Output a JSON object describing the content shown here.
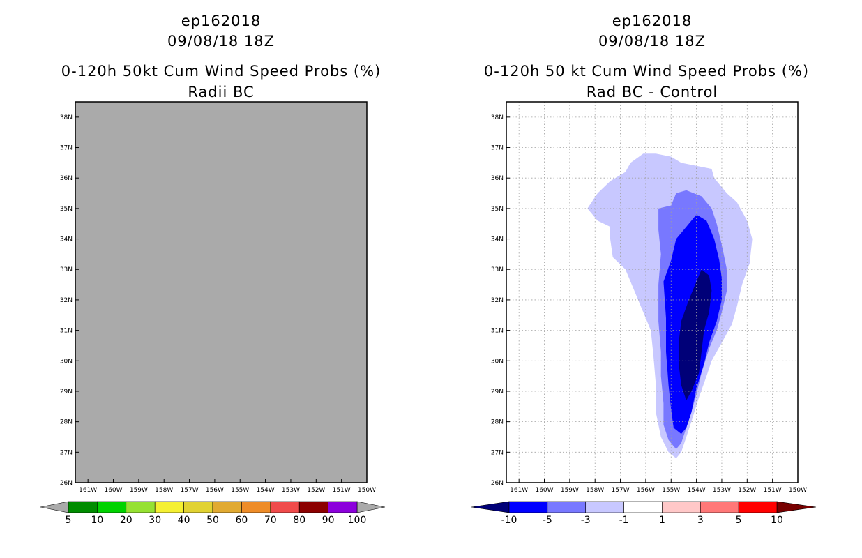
{
  "chart_data": [
    {
      "type": "heatmap",
      "title_lines": [
        "ep162018",
        "09/08/18 18Z",
        "0-120h 50kt Cum Wind Speed Probs (%)",
        "Radii BC"
      ],
      "x_ticks": [
        "161W",
        "160W",
        "159W",
        "158W",
        "157W",
        "156W",
        "155W",
        "154W",
        "153W",
        "152W",
        "151W",
        "150W"
      ],
      "y_ticks": [
        "26N",
        "27N",
        "28N",
        "29N",
        "30N",
        "31N",
        "32N",
        "33N",
        "34N",
        "35N",
        "36N",
        "37N",
        "38N"
      ],
      "xlim": [
        -161.5,
        -150.0
      ],
      "ylim": [
        26.0,
        38.5
      ],
      "field": "no probabilities above 5% (missing/undefined)",
      "background_color": "#aaaaaa",
      "colorbar": {
        "labels": [
          "5",
          "10",
          "20",
          "30",
          "40",
          "50",
          "60",
          "70",
          "80",
          "90",
          "100"
        ],
        "colors": [
          "#008c00",
          "#00d200",
          "#96e132",
          "#f5f032",
          "#e1d232",
          "#e1aa32",
          "#ee8c28",
          "#f04b4b",
          "#8c0000",
          "#8c00dc"
        ]
      }
    },
    {
      "type": "heatmap",
      "title_lines": [
        "ep162018",
        "09/08/18 18Z",
        "0-120h 50 kt Cum Wind Speed Probs (%)",
        "Rad BC - Control"
      ],
      "x_ticks": [
        "161W",
        "160W",
        "159W",
        "158W",
        "157W",
        "156W",
        "155W",
        "154W",
        "153W",
        "152W",
        "151W",
        "150W"
      ],
      "y_ticks": [
        "26N",
        "27N",
        "28N",
        "29N",
        "30N",
        "31N",
        "32N",
        "33N",
        "34N",
        "35N",
        "36N",
        "37N",
        "38N"
      ],
      "xlim": [
        -161.5,
        -150.0
      ],
      "ylim": [
        26.0,
        38.5
      ],
      "contours": [
        {
          "level": "-3 to -1",
          "color": "#c8c8ff",
          "points": [
            [
              -158.3,
              35.0
            ],
            [
              -157.9,
              35.5
            ],
            [
              -157.4,
              35.9
            ],
            [
              -156.8,
              36.2
            ],
            [
              -156.6,
              36.5
            ],
            [
              -156.1,
              36.8
            ],
            [
              -155.6,
              36.8
            ],
            [
              -155.0,
              36.7
            ],
            [
              -154.6,
              36.5
            ],
            [
              -154.0,
              36.4
            ],
            [
              -153.4,
              36.3
            ],
            [
              -153.3,
              36.0
            ],
            [
              -152.8,
              35.5
            ],
            [
              -152.4,
              35.2
            ],
            [
              -152.0,
              34.6
            ],
            [
              -151.8,
              34.0
            ],
            [
              -151.9,
              33.2
            ],
            [
              -152.2,
              32.5
            ],
            [
              -152.4,
              31.8
            ],
            [
              -152.6,
              31.2
            ],
            [
              -153.0,
              30.6
            ],
            [
              -153.4,
              30.0
            ],
            [
              -153.6,
              29.5
            ],
            [
              -153.9,
              28.8
            ],
            [
              -154.2,
              28.0
            ],
            [
              -154.4,
              27.5
            ],
            [
              -154.6,
              27.0
            ],
            [
              -154.8,
              26.8
            ],
            [
              -155.1,
              27.0
            ],
            [
              -155.4,
              27.5
            ],
            [
              -155.6,
              28.3
            ],
            [
              -155.6,
              29.2
            ],
            [
              -155.7,
              30.2
            ],
            [
              -155.8,
              31.0
            ],
            [
              -156.3,
              32.0
            ],
            [
              -156.8,
              33.0
            ],
            [
              -157.3,
              33.4
            ],
            [
              -157.4,
              34.0
            ],
            [
              -157.4,
              34.4
            ],
            [
              -157.9,
              34.6
            ]
          ]
        },
        {
          "level": "-5 to -3",
          "color": "#7878ff",
          "points": [
            [
              -155.5,
              35.0
            ],
            [
              -155.0,
              35.1
            ],
            [
              -154.8,
              35.5
            ],
            [
              -154.4,
              35.6
            ],
            [
              -153.8,
              35.4
            ],
            [
              -153.4,
              35.0
            ],
            [
              -153.2,
              34.5
            ],
            [
              -153.0,
              33.8
            ],
            [
              -152.8,
              33.0
            ],
            [
              -152.8,
              32.3
            ],
            [
              -153.0,
              31.6
            ],
            [
              -153.2,
              31.0
            ],
            [
              -153.5,
              30.4
            ],
            [
              -153.8,
              29.6
            ],
            [
              -154.0,
              28.9
            ],
            [
              -154.2,
              28.3
            ],
            [
              -154.4,
              27.8
            ],
            [
              -154.6,
              27.3
            ],
            [
              -154.8,
              27.1
            ],
            [
              -155.1,
              27.4
            ],
            [
              -155.3,
              27.9
            ],
            [
              -155.3,
              28.6
            ],
            [
              -155.4,
              29.5
            ],
            [
              -155.4,
              30.3
            ],
            [
              -155.5,
              31.3
            ],
            [
              -155.5,
              32.5
            ],
            [
              -155.4,
              33.5
            ],
            [
              -155.5,
              34.3
            ]
          ]
        },
        {
          "level": "-10 to -5",
          "color": "#0000ff",
          "points": [
            [
              -154.8,
              34.0
            ],
            [
              -154.4,
              34.4
            ],
            [
              -154.0,
              34.8
            ],
            [
              -153.6,
              34.6
            ],
            [
              -153.3,
              34.0
            ],
            [
              -153.1,
              33.3
            ],
            [
              -153.0,
              32.7
            ],
            [
              -153.0,
              32.0
            ],
            [
              -153.2,
              31.3
            ],
            [
              -153.5,
              30.6
            ],
            [
              -153.7,
              29.9
            ],
            [
              -154.0,
              29.1
            ],
            [
              -154.2,
              28.3
            ],
            [
              -154.4,
              27.8
            ],
            [
              -154.6,
              27.6
            ],
            [
              -154.9,
              27.8
            ],
            [
              -155.0,
              28.4
            ],
            [
              -155.1,
              29.2
            ],
            [
              -155.2,
              30.3
            ],
            [
              -155.2,
              31.4
            ],
            [
              -155.3,
              32.6
            ],
            [
              -155.0,
              33.3
            ]
          ]
        },
        {
          "level": "< -10",
          "color": "#000078",
          "points": [
            [
              -154.3,
              32.0
            ],
            [
              -154.0,
              32.6
            ],
            [
              -153.8,
              33.0
            ],
            [
              -153.5,
              32.8
            ],
            [
              -153.4,
              32.3
            ],
            [
              -153.5,
              31.6
            ],
            [
              -153.7,
              31.0
            ],
            [
              -153.8,
              30.3
            ],
            [
              -153.9,
              29.6
            ],
            [
              -154.2,
              29.0
            ],
            [
              -154.4,
              28.7
            ],
            [
              -154.6,
              29.2
            ],
            [
              -154.7,
              29.9
            ],
            [
              -154.7,
              30.6
            ],
            [
              -154.6,
              31.3
            ]
          ]
        }
      ],
      "colorbar": {
        "labels": [
          "-10",
          "-5",
          "-3",
          "-1",
          "1",
          "3",
          "5",
          "10"
        ],
        "colors": [
          "#0000ff",
          "#7878ff",
          "#c8c8ff",
          "#ffffff",
          "#ffc8c8",
          "#ff7878",
          "#ff0000"
        ],
        "low_end_color": "#000078",
        "high_end_color": "#780000"
      }
    }
  ]
}
